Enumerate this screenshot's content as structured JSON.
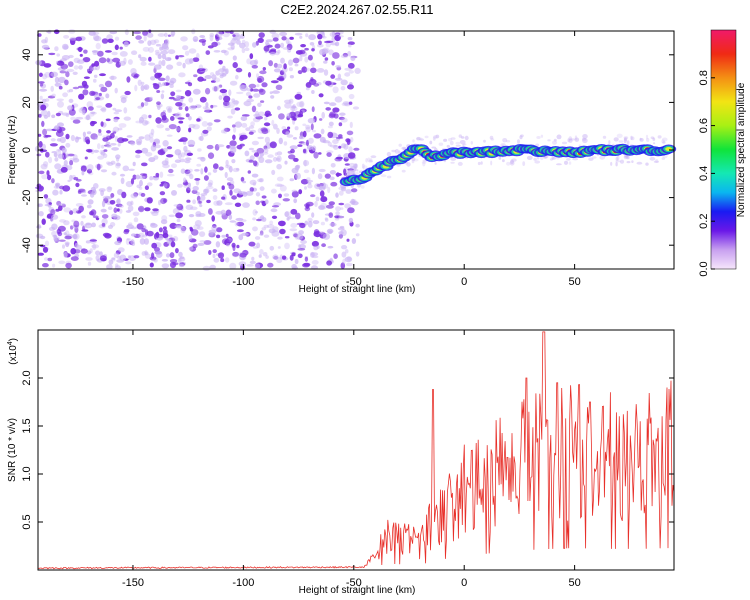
{
  "title": "C2E2.2024.267.02.55.R11",
  "colors": {
    "snr_line": "#e8302a",
    "speckle": "#7a2ee0",
    "speckle_light": "#c9b2f4",
    "track_core": "#e8281e",
    "track_mid": "#f0f020",
    "track_outer": "#18d8a0",
    "track_edge": "#2020f0"
  },
  "chart_data": [
    {
      "type": "heatmap",
      "name": "spectrogram",
      "xlabel": "Height of straight line (km)",
      "ylabel": "Frequency (Hz)",
      "xlim": [
        -193,
        95
      ],
      "ylim": [
        -50,
        50
      ],
      "xticks": [
        -150,
        -100,
        -50,
        0,
        50
      ],
      "yticks": [
        -40,
        -20,
        0,
        20,
        40
      ],
      "colorbar": {
        "label": "Normalized spectral amplitude",
        "range": [
          0,
          1
        ],
        "ticks": [
          "0.0",
          "0.2",
          "0.4",
          "0.6",
          "0.8"
        ],
        "tick_values": [
          0.0,
          0.2,
          0.4,
          0.6,
          0.8
        ]
      },
      "noise_region_x": [
        -193,
        -50
      ],
      "track": [
        {
          "x": -53,
          "y": -13
        },
        {
          "x": -45,
          "y": -12
        },
        {
          "x": -40,
          "y": -8
        },
        {
          "x": -35,
          "y": -6
        },
        {
          "x": -28,
          "y": -3
        },
        {
          "x": -23,
          "y": 0
        },
        {
          "x": -20,
          "y": 2
        },
        {
          "x": -18,
          "y": -1
        },
        {
          "x": -15,
          "y": -3
        },
        {
          "x": -10,
          "y": -2
        },
        {
          "x": 0,
          "y": -1
        },
        {
          "x": 10,
          "y": -1
        },
        {
          "x": 20,
          "y": 0
        },
        {
          "x": 30,
          "y": 0
        },
        {
          "x": 40,
          "y": -1
        },
        {
          "x": 50,
          "y": -1
        },
        {
          "x": 60,
          "y": 0
        },
        {
          "x": 70,
          "y": 0
        },
        {
          "x": 80,
          "y": 0
        },
        {
          "x": 95,
          "y": 0
        }
      ]
    },
    {
      "type": "line",
      "name": "snr",
      "xlabel": "Height of straight line (km)",
      "ylabel": "SNR (10 * v/v)",
      "scale_note": "(x10",
      "scale_exponent": "4",
      "xlim": [
        -193,
        95
      ],
      "ylim": [
        0,
        2.5
      ],
      "xticks": [
        -150,
        -100,
        -50,
        0,
        50
      ],
      "yticks": [
        "0.5",
        "1.0",
        "1.5",
        "2.0"
      ],
      "ytick_values": [
        0.5,
        1.0,
        1.5,
        2.0
      ],
      "envelope": [
        {
          "x": -193,
          "y": 0.02
        },
        {
          "x": -45,
          "y": 0.03
        },
        {
          "x": -40,
          "y": 0.15
        },
        {
          "x": -35,
          "y": 0.35
        },
        {
          "x": -30,
          "y": 0.3
        },
        {
          "x": -20,
          "y": 0.25
        },
        {
          "x": -15,
          "y": 0.45
        },
        {
          "x": -10,
          "y": 0.55
        },
        {
          "x": 0,
          "y": 0.75
        },
        {
          "x": 10,
          "y": 0.85
        },
        {
          "x": 20,
          "y": 0.95
        },
        {
          "x": 30,
          "y": 1.05
        },
        {
          "x": 40,
          "y": 1.1
        },
        {
          "x": 50,
          "y": 1.15
        },
        {
          "x": 60,
          "y": 1.1
        },
        {
          "x": 70,
          "y": 1.1
        },
        {
          "x": 80,
          "y": 1.1
        },
        {
          "x": 95,
          "y": 1.15
        }
      ],
      "peaks": [
        {
          "x": -14,
          "y": 1.88
        },
        {
          "x": 28,
          "y": 2.0
        },
        {
          "x": 36,
          "y": 2.48
        },
        {
          "x": 42,
          "y": 1.95
        },
        {
          "x": 52,
          "y": 1.93
        },
        {
          "x": 57,
          "y": 1.75
        }
      ]
    }
  ]
}
